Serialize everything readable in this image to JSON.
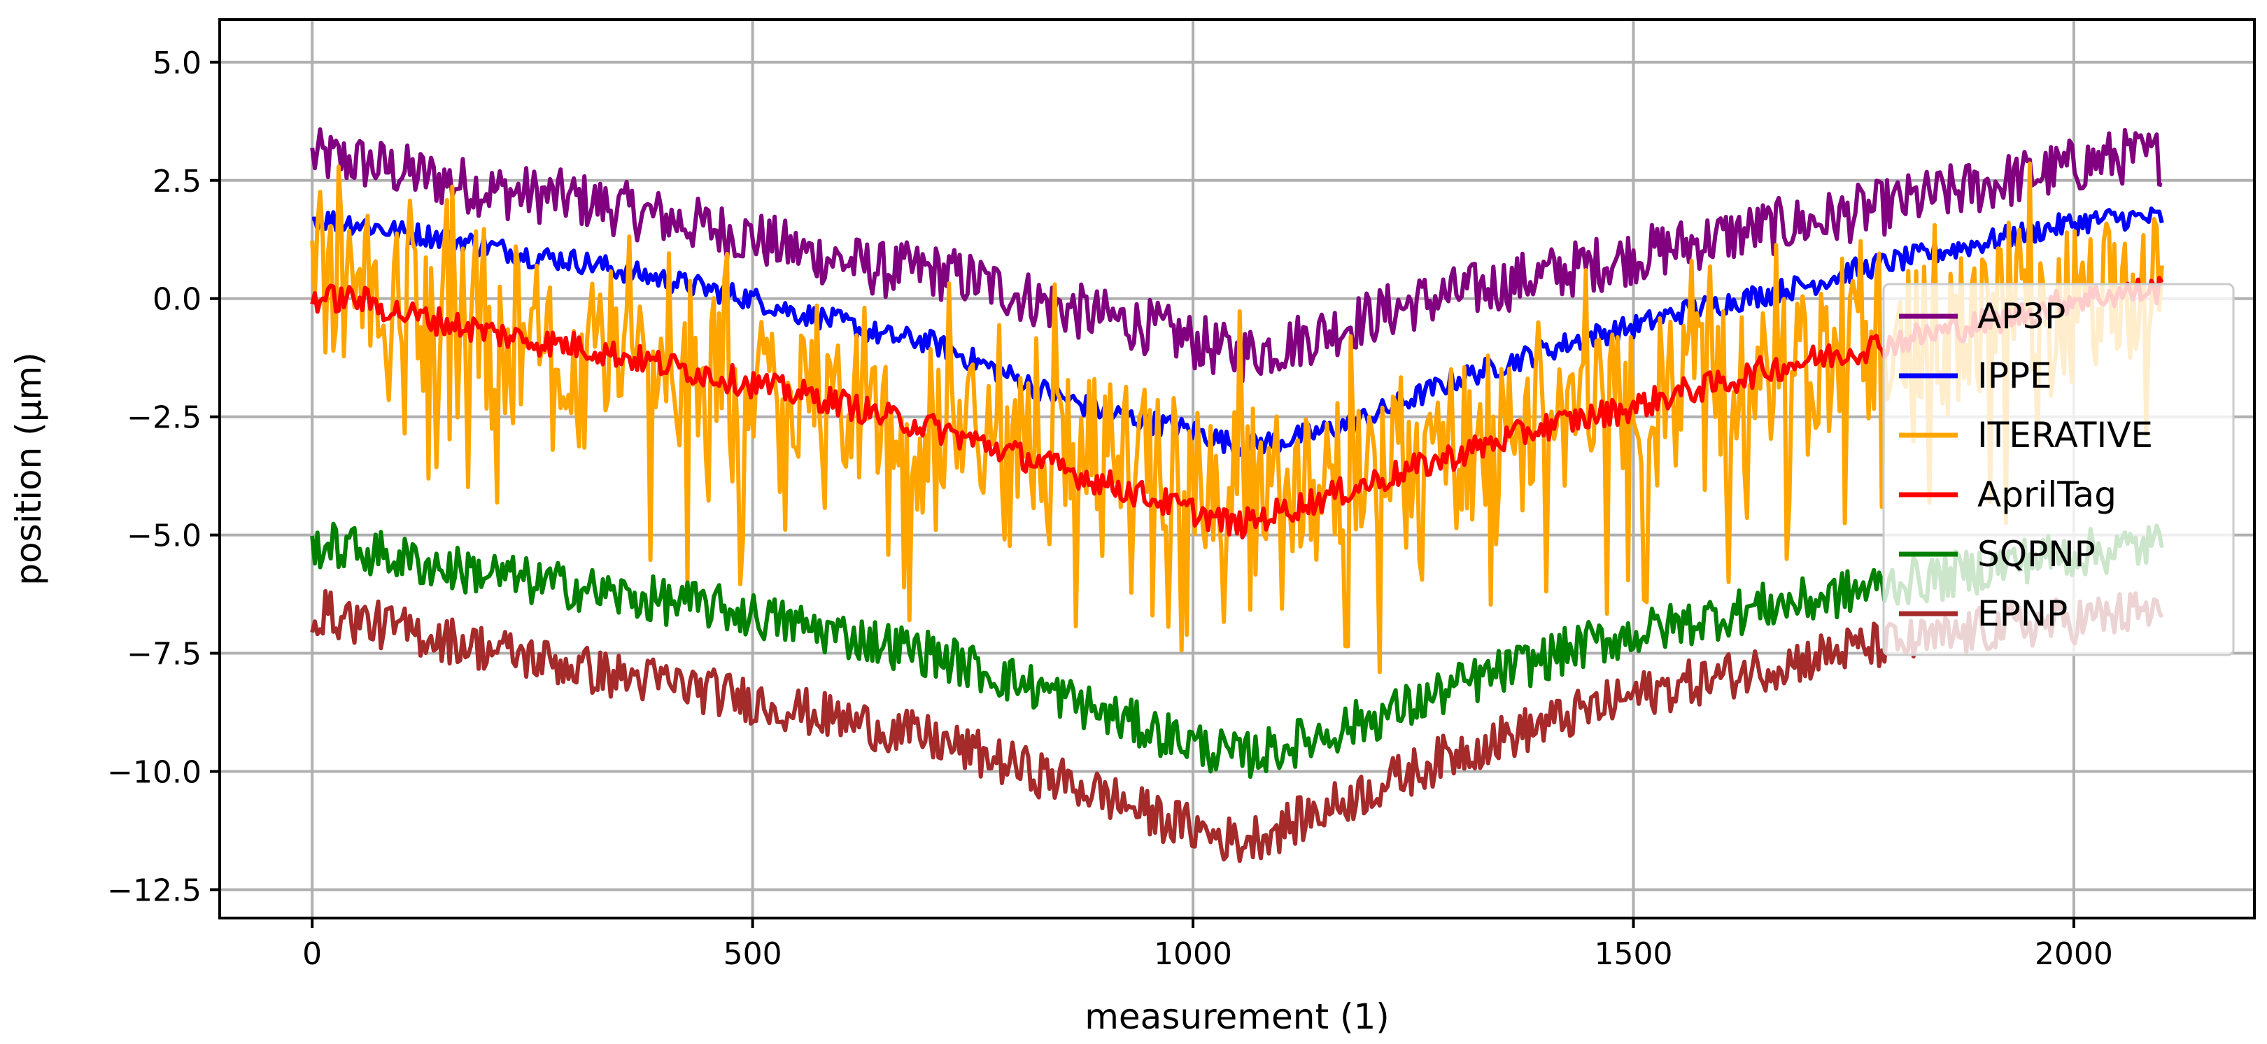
{
  "chart_data": {
    "type": "line",
    "title": "",
    "xlabel": "measurement (1)",
    "ylabel": "position (µm)",
    "xlim": [
      -105,
      2205
    ],
    "ylim": [
      -13.1,
      5.9
    ],
    "grid": true,
    "legend_position": "center-right",
    "x_ticks": [
      0,
      500,
      1000,
      1500,
      2000
    ],
    "x_tick_labels": [
      "0",
      "500",
      "1000",
      "1500",
      "2000"
    ],
    "y_ticks": [
      5.0,
      2.5,
      0.0,
      -2.5,
      -5.0,
      -7.5,
      -10.0,
      -12.5
    ],
    "y_tick_labels": [
      "5.0",
      "2.5",
      "0.0",
      "−2.5",
      "−5.0",
      "−7.5",
      "−10.0",
      "−12.5"
    ],
    "x": [
      0,
      50,
      100,
      150,
      200,
      250,
      300,
      350,
      400,
      450,
      500,
      550,
      600,
      650,
      700,
      750,
      800,
      850,
      900,
      950,
      1000,
      1050,
      1100,
      1150,
      1200,
      1250,
      1300,
      1350,
      1400,
      1450,
      1500,
      1550,
      1600,
      1650,
      1700,
      1750,
      1800,
      1850,
      1900,
      1950,
      2000,
      2050,
      2100
    ],
    "series": [
      {
        "name": "AP3P",
        "color": "#800080",
        "noise": 0.6,
        "values": [
          3.0,
          2.9,
          2.7,
          2.5,
          2.3,
          2.2,
          2.1,
          1.9,
          1.7,
          1.5,
          1.3,
          1.0,
          0.8,
          0.6,
          0.6,
          0.4,
          0.1,
          -0.2,
          -0.4,
          -0.6,
          -0.9,
          -1.2,
          -1.0,
          -0.7,
          -0.4,
          -0.1,
          0.1,
          0.3,
          0.5,
          0.7,
          0.9,
          1.1,
          1.3,
          1.5,
          1.6,
          1.8,
          2.0,
          2.2,
          2.4,
          2.6,
          2.8,
          3.0,
          3.0
        ]
      },
      {
        "name": "IPPE",
        "color": "#0000ff",
        "noise": 0.25,
        "values": [
          1.7,
          1.6,
          1.4,
          1.3,
          1.1,
          0.9,
          0.8,
          0.6,
          0.4,
          0.2,
          0.0,
          -0.3,
          -0.5,
          -0.8,
          -0.9,
          -1.3,
          -1.7,
          -2.1,
          -2.4,
          -2.6,
          -2.8,
          -3.1,
          -3.0,
          -2.8,
          -2.5,
          -2.1,
          -1.7,
          -1.4,
          -1.1,
          -0.8,
          -0.6,
          -0.3,
          -0.1,
          0.1,
          0.3,
          0.6,
          0.8,
          1.0,
          1.2,
          1.4,
          1.6,
          1.7,
          1.7
        ]
      },
      {
        "name": "ITERATIVE",
        "color": "#ffa500",
        "noise": 1.6,
        "values": [
          0.3,
          0.1,
          -0.1,
          -0.3,
          -0.5,
          -0.7,
          -0.9,
          -1.1,
          -1.3,
          -1.5,
          -1.7,
          -1.9,
          -2.1,
          -2.3,
          -2.5,
          -2.7,
          -2.9,
          -3.1,
          -3.3,
          -3.5,
          -3.7,
          -3.9,
          -3.7,
          -3.5,
          -3.3,
          -3.1,
          -2.9,
          -2.7,
          -2.5,
          -2.3,
          -2.1,
          -1.9,
          -1.7,
          -1.5,
          -1.3,
          -1.1,
          -0.9,
          -0.7,
          -0.5,
          -0.3,
          -0.1,
          0.1,
          0.3
        ]
      },
      {
        "name": "AprilTag",
        "color": "#ff0000",
        "noise": 0.3,
        "values": [
          0.0,
          0.0,
          -0.3,
          -0.5,
          -0.7,
          -0.9,
          -1.0,
          -1.2,
          -1.4,
          -1.6,
          -1.8,
          -2.0,
          -2.2,
          -2.5,
          -2.7,
          -3.0,
          -3.3,
          -3.6,
          -3.9,
          -4.2,
          -4.5,
          -4.8,
          -4.5,
          -4.2,
          -3.9,
          -3.6,
          -3.3,
          -3.0,
          -2.7,
          -2.5,
          -2.3,
          -2.0,
          -1.8,
          -1.5,
          -1.3,
          -1.1,
          -0.9,
          -0.7,
          -0.5,
          -0.3,
          0.0,
          0.1,
          0.2
        ]
      },
      {
        "name": "SQPNP",
        "color": "#008000",
        "noise": 0.5,
        "values": [
          -5.2,
          -5.3,
          -5.5,
          -5.7,
          -5.8,
          -6.0,
          -6.1,
          -6.3,
          -6.4,
          -6.5,
          -6.7,
          -6.9,
          -7.1,
          -7.3,
          -7.5,
          -7.8,
          -8.1,
          -8.4,
          -8.8,
          -9.1,
          -9.4,
          -9.7,
          -9.5,
          -9.2,
          -8.9,
          -8.6,
          -8.2,
          -7.9,
          -7.6,
          -7.3,
          -7.1,
          -6.9,
          -6.7,
          -6.5,
          -6.4,
          -6.2,
          -6.0,
          -5.9,
          -5.7,
          -5.5,
          -5.4,
          -5.3,
          -5.2
        ]
      },
      {
        "name": "EPNP",
        "color": "#a52a2a",
        "noise": 0.5,
        "values": [
          -6.6,
          -6.8,
          -7.0,
          -7.2,
          -7.4,
          -7.6,
          -7.8,
          -8.0,
          -8.1,
          -8.3,
          -8.5,
          -8.7,
          -8.9,
          -9.1,
          -9.3,
          -9.6,
          -9.9,
          -10.2,
          -10.5,
          -10.9,
          -11.2,
          -11.5,
          -11.2,
          -10.8,
          -10.4,
          -10.0,
          -9.6,
          -9.3,
          -9.0,
          -8.7,
          -8.4,
          -8.2,
          -8.0,
          -7.8,
          -7.6,
          -7.4,
          -7.3,
          -7.2,
          -7.0,
          -6.9,
          -6.8,
          -6.7,
          -6.6
        ]
      }
    ]
  }
}
